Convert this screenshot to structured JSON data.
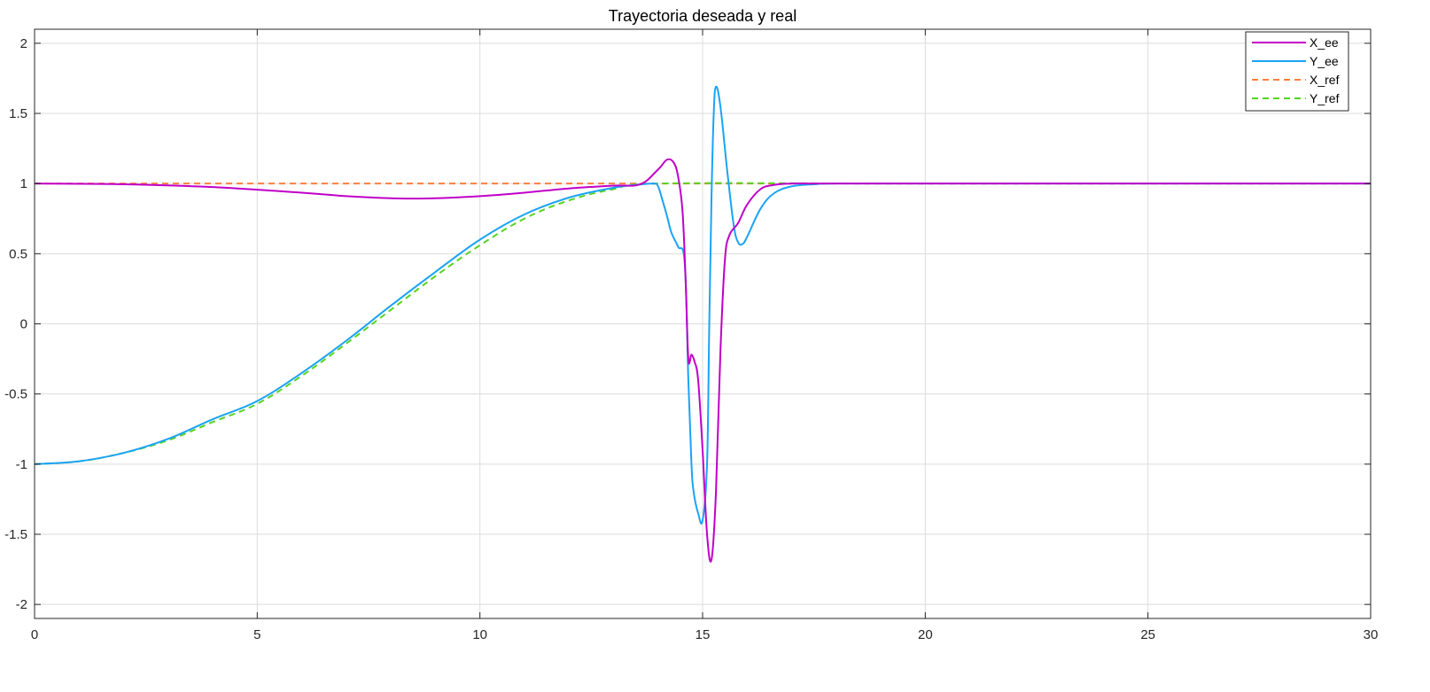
{
  "chart_data": {
    "type": "line",
    "title": "Trayectoria deseada y real",
    "xlabel": "",
    "ylabel": "",
    "xlim": [
      0,
      30
    ],
    "ylim": [
      -2.1,
      2.1
    ],
    "xticks": [
      0,
      5,
      10,
      15,
      20,
      25,
      30
    ],
    "xtick_labels": [
      "0",
      "5",
      "10",
      "15",
      "20",
      "25",
      "30"
    ],
    "yticks": [
      -2,
      -1.5,
      -1,
      -0.5,
      0,
      0.5,
      1,
      1.5,
      2
    ],
    "ytick_labels": [
      "-2",
      "-1.5",
      "-1",
      "-0.5",
      "0",
      "0.5",
      "1",
      "1.5",
      "2"
    ],
    "grid": true,
    "legend_position": "top-right",
    "series": [
      {
        "name": "X_ee",
        "color": "#c000c8",
        "dash": "solid",
        "x": [
          0,
          2,
          4,
          6,
          7,
          8,
          8.5,
          9,
          10,
          11,
          12,
          13,
          13.6,
          14,
          14.2,
          14.35,
          14.45,
          14.55,
          14.62,
          14.68,
          14.75,
          14.82,
          14.9,
          15,
          15.1,
          15.2,
          15.3,
          15.4,
          15.5,
          15.6,
          15.8,
          16,
          16.3,
          16.6,
          17,
          17.5,
          18,
          20,
          25,
          30
        ],
        "y": [
          1.0,
          0.995,
          0.975,
          0.935,
          0.91,
          0.895,
          0.893,
          0.895,
          0.91,
          0.935,
          0.965,
          0.985,
          0.995,
          1.1,
          1.17,
          1.15,
          1.05,
          0.8,
          0.3,
          -0.25,
          -0.22,
          -0.27,
          -0.4,
          -0.9,
          -1.5,
          -1.68,
          -1.2,
          -0.2,
          0.45,
          0.63,
          0.72,
          0.85,
          0.96,
          0.99,
          1.0,
          1.0,
          1.0,
          1.0,
          1.0,
          1.0
        ]
      },
      {
        "name": "Y_ee",
        "color": "#1aa3f5",
        "dash": "solid",
        "x": [
          0,
          1,
          2,
          3,
          4,
          5,
          6,
          7,
          8,
          9,
          10,
          11,
          12,
          13,
          13.5,
          13.9,
          14.0,
          14.1,
          14.2,
          14.3,
          14.45,
          14.6,
          14.68,
          14.75,
          14.8,
          14.9,
          15.0,
          15.1,
          15.15,
          15.2,
          15.25,
          15.3,
          15.4,
          15.55,
          15.7,
          15.8,
          15.9,
          16,
          16.3,
          16.6,
          17,
          17.5,
          18,
          20,
          25,
          30
        ],
        "y": [
          -1.0,
          -0.98,
          -0.92,
          -0.82,
          -0.68,
          -0.55,
          -0.35,
          -0.12,
          0.13,
          0.37,
          0.6,
          0.78,
          0.9,
          0.97,
          0.99,
          1.0,
          0.98,
          0.88,
          0.77,
          0.65,
          0.55,
          0.43,
          -0.4,
          -1.0,
          -1.2,
          -1.35,
          -1.4,
          -1.0,
          0.0,
          0.9,
          1.5,
          1.69,
          1.55,
          1.1,
          0.7,
          0.58,
          0.57,
          0.62,
          0.82,
          0.93,
          0.98,
          0.995,
          1.0,
          1.0,
          1.0,
          1.0
        ]
      },
      {
        "name": "X_ref",
        "color": "#ff7f3f",
        "dash": "dashed",
        "x": [
          0,
          30
        ],
        "y": [
          1.0,
          1.0
        ]
      },
      {
        "name": "Y_ref",
        "color": "#56d420",
        "dash": "dashed",
        "x": [
          0,
          1,
          2,
          3,
          4,
          5,
          6,
          7,
          8,
          9,
          10,
          11,
          12,
          13,
          14,
          20,
          30
        ],
        "y": [
          -1.0,
          -0.98,
          -0.92,
          -0.83,
          -0.7,
          -0.57,
          -0.37,
          -0.14,
          0.1,
          0.34,
          0.56,
          0.75,
          0.88,
          0.96,
          1.0,
          1.0,
          1.0
        ]
      }
    ]
  }
}
